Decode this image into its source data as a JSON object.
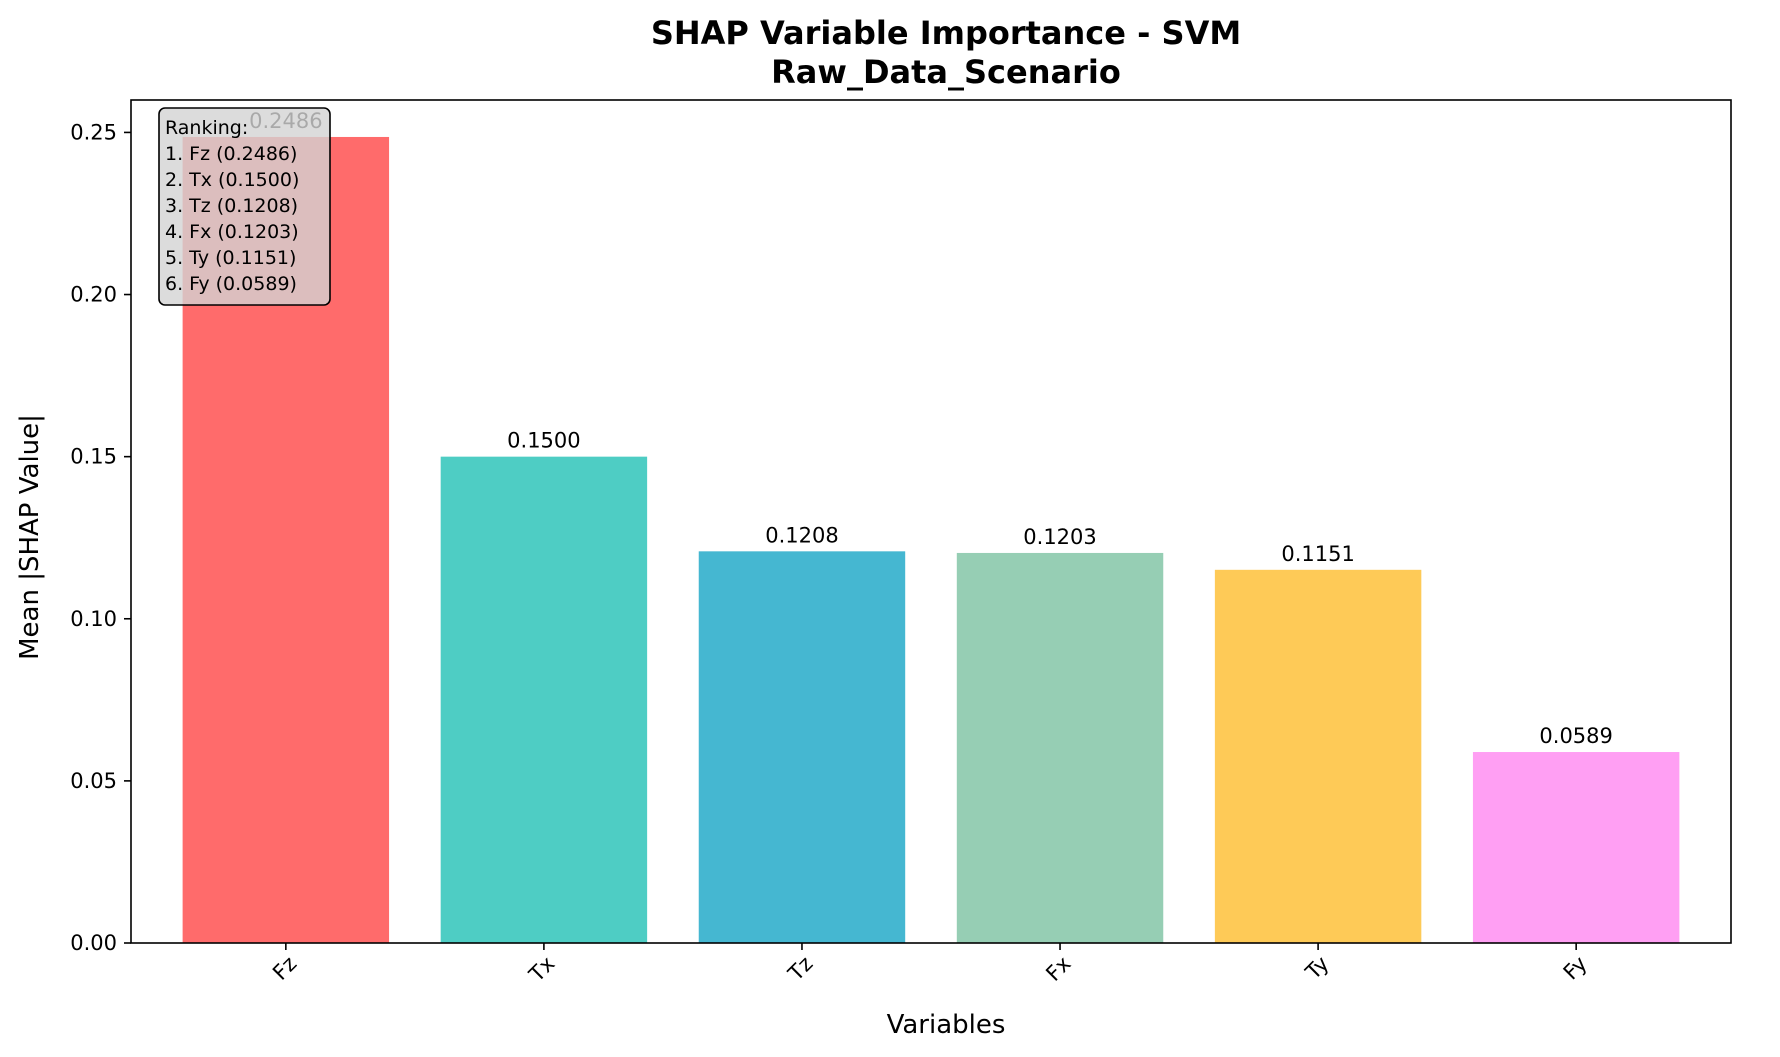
{
  "chart_data": {
    "type": "bar",
    "title": "SHAP Variable Importance - SVM",
    "subtitle": "Raw_Data_Scenario",
    "xlabel": "Variables",
    "ylabel": "Mean |SHAP Value|",
    "categories": [
      "Fz",
      "Tx",
      "Tz",
      "Fx",
      "Ty",
      "Fy"
    ],
    "values": [
      0.2486,
      0.15,
      0.1208,
      0.1203,
      0.1151,
      0.0589
    ],
    "value_labels": [
      "0.2486",
      "0.1500",
      "0.1208",
      "0.1203",
      "0.1151",
      "0.0589"
    ],
    "colors": [
      "#FF6B6B",
      "#4ECDC4",
      "#45B7D1",
      "#96CEB4",
      "#FECA57",
      "#FF9FF3"
    ],
    "ylim": [
      0,
      0.26
    ],
    "yticks": [
      0,
      0.05,
      0.1,
      0.15,
      0.2,
      0.25
    ],
    "ytick_labels": [
      "0.00",
      "0.05",
      "0.10",
      "0.15",
      "0.20",
      "0.25"
    ],
    "grid": false,
    "legend": "none",
    "annotation": {
      "placement": "top-left",
      "lines": [
        "Ranking:",
        "1. Fz (0.2486)",
        "2. Tx (0.1500)",
        "3. Tz (0.1208)",
        "4. Fx (0.1203)",
        "5. Ty (0.1151)",
        "6. Fy (0.0589)"
      ]
    }
  }
}
